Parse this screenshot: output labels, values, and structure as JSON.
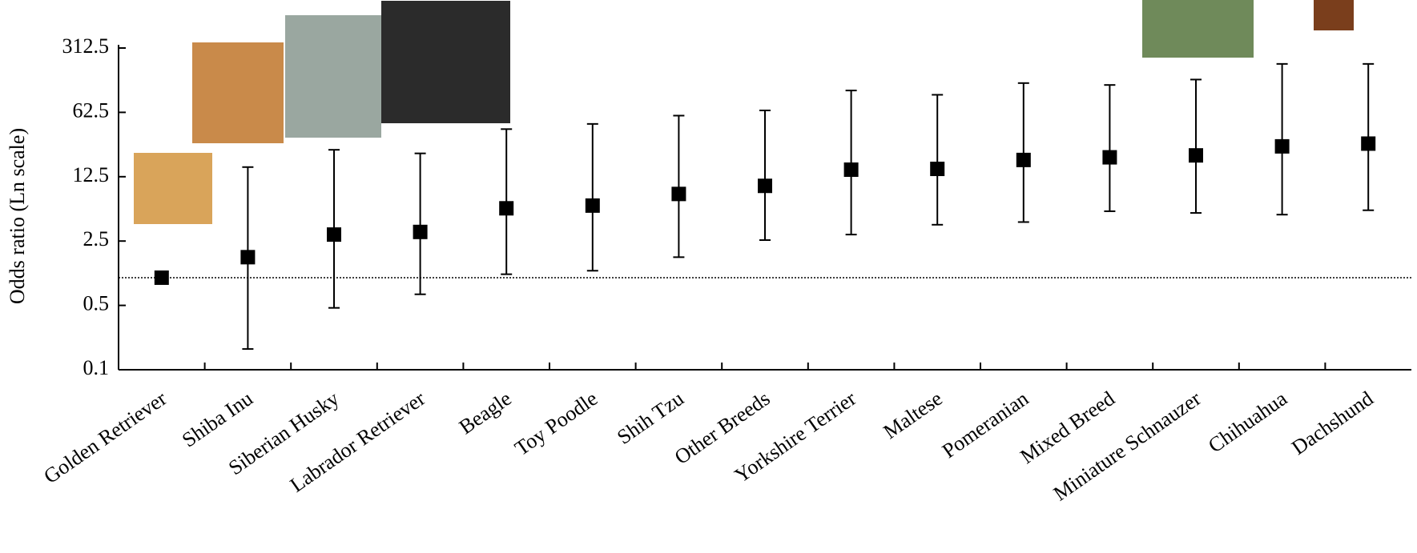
{
  "chart_data": {
    "type": "errorbar",
    "y_label": "Odds ratio (Ln scale)",
    "categories": [
      "Golden Retriever",
      "Shiba Inu",
      "Siberian Husky",
      "Labrador Retriever",
      "Beagle",
      "Toy Poodle",
      "Shih Tzu",
      "Other Breeds",
      "Yorkshire Terrier",
      "Maltese",
      "Pomeranian",
      "Mixed Breed",
      "Miniature Schnauzer",
      "Chihuahua",
      "Dachshund"
    ],
    "series": [
      {
        "color": "#000000",
        "values": [
          1,
          1.67,
          2.94,
          3.14,
          5.67,
          6.07,
          8.12,
          9.94,
          14.9,
          15.2,
          19.0,
          20.3,
          21.3,
          26.7,
          28.6
        ],
        "lower": [
          null,
          0.168,
          0.47,
          0.66,
          1.09,
          1.19,
          1.67,
          2.56,
          2.94,
          3.76,
          4.02,
          5.27,
          5.05,
          4.84,
          5.4
        ],
        "upper": [
          null,
          15.9,
          24.5,
          22.4,
          41.1,
          46.8,
          57.6,
          65.6,
          108,
          97,
          130,
          124,
          142,
          210,
          210
        ]
      }
    ],
    "log_scale": true,
    "ylim": [
      0.1,
      312.5
    ],
    "yticks": [
      0.1,
      0.5,
      2.5,
      12.5,
      62.5,
      312.5
    ],
    "reference_line": 1
  }
}
